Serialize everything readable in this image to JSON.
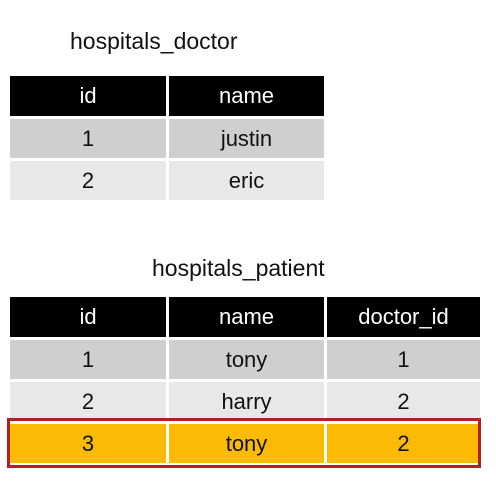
{
  "tables": [
    {
      "caption": "hospitals_doctor",
      "columns": [
        "id",
        "name"
      ],
      "rows": [
        [
          "1",
          "justin"
        ],
        [
          "2",
          "eric"
        ]
      ]
    },
    {
      "caption": "hospitals_patient",
      "columns": [
        "id",
        "name",
        "doctor_id"
      ],
      "rows": [
        [
          "1",
          "tony",
          "1"
        ],
        [
          "2",
          "harry",
          "2"
        ],
        [
          "3",
          "tony",
          "2"
        ]
      ],
      "highlighted_row": 2
    }
  ],
  "colors": {
    "header_bg": "#000000",
    "row_odd": "#cfcfcf",
    "row_even": "#e8e8e8",
    "highlight_fill": "#fbbb04",
    "highlight_border": "#b51f24"
  }
}
